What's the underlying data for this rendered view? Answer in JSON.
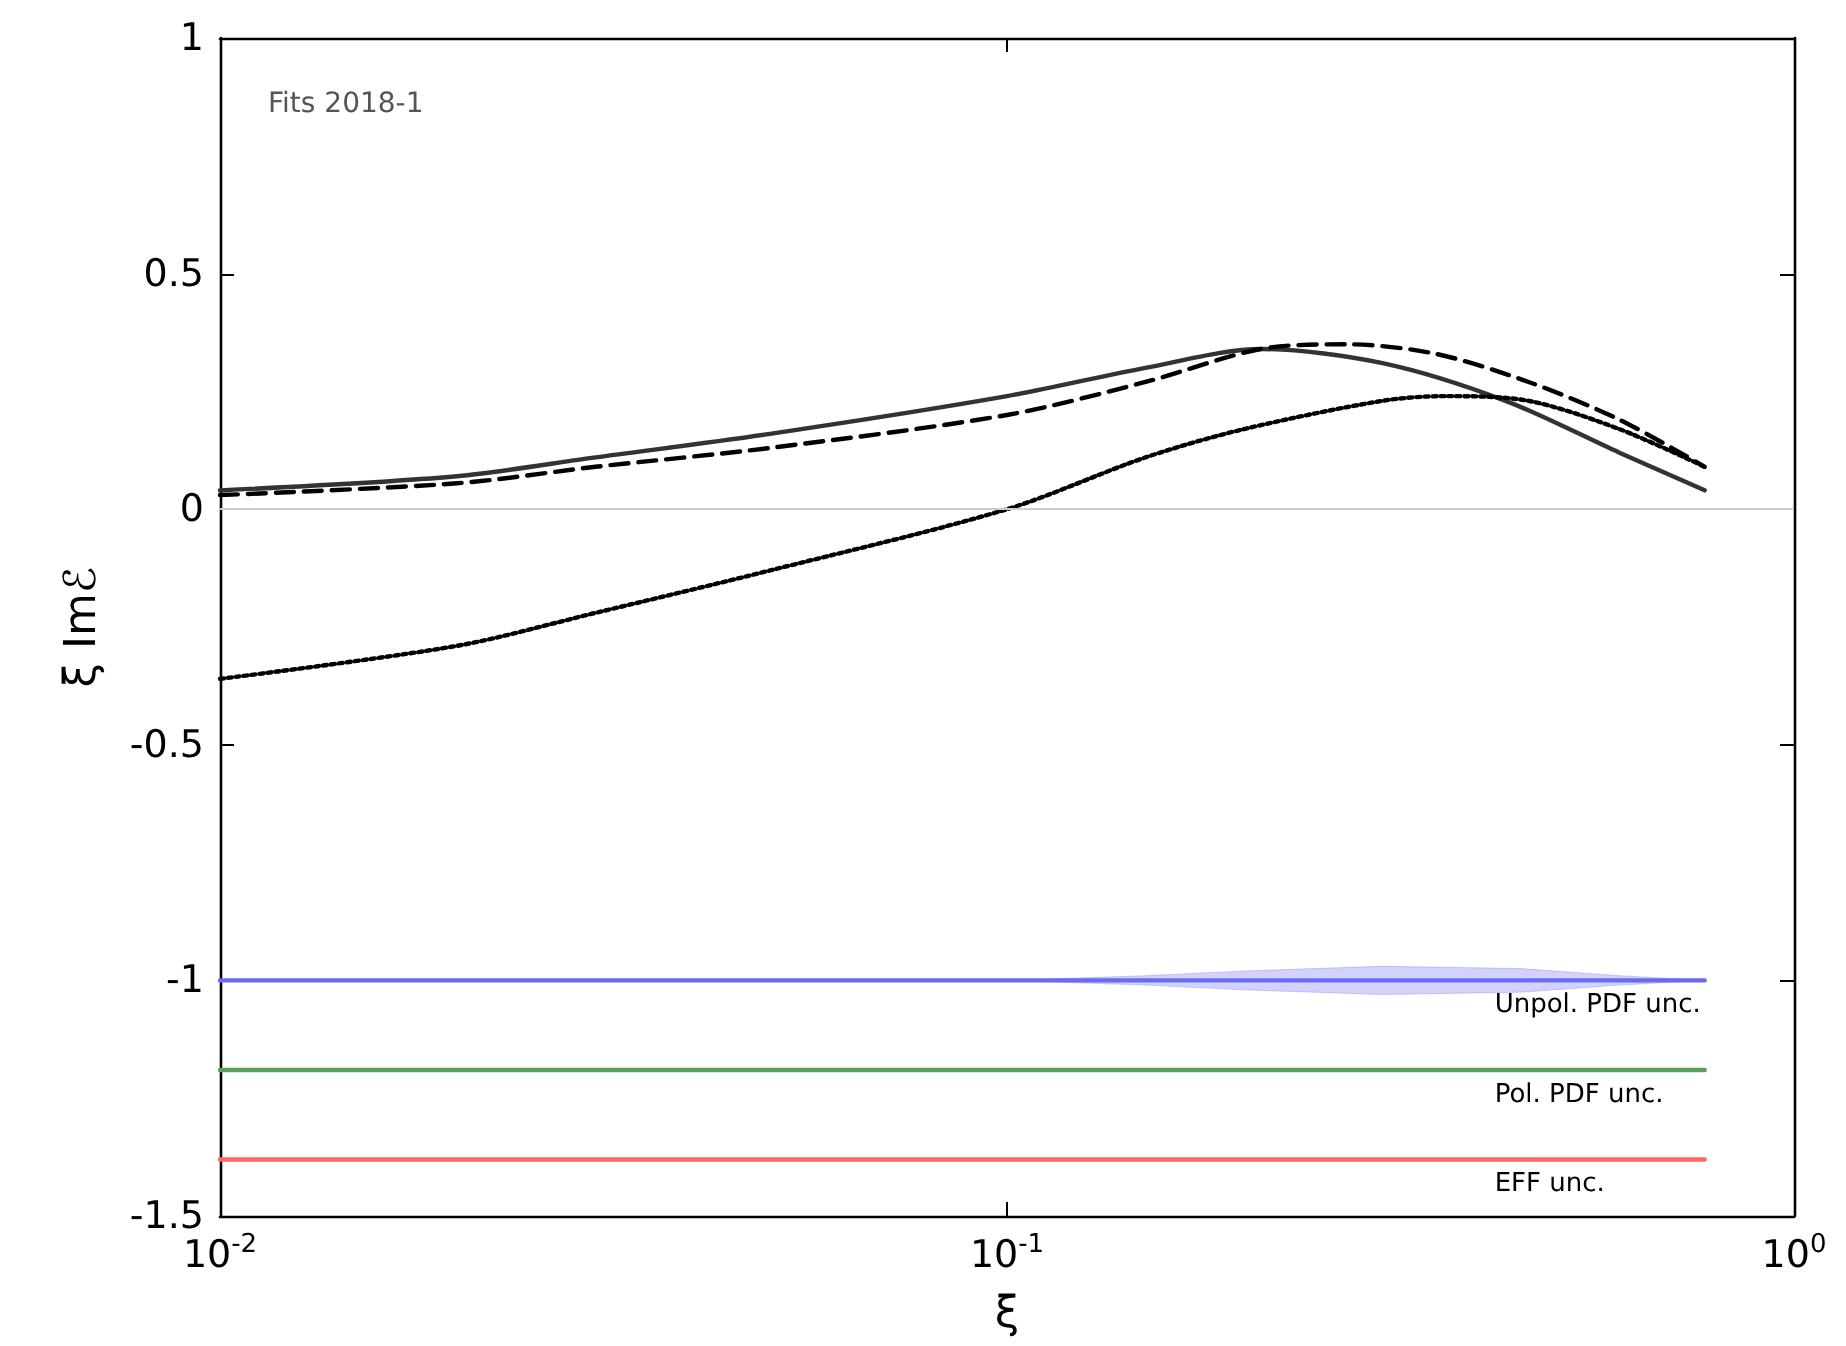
{
  "chart_data": {
    "type": "line",
    "xlabel": "ξ",
    "ylabel": "ξ Imℰ",
    "annotations": [
      "Fits 2018-1"
    ],
    "log": "x",
    "xlim": [
      0.01,
      1
    ],
    "xticks": [
      {
        "value": 0.01,
        "label": "10$^{-2}$"
      },
      {
        "value": 0.1,
        "label": "10$^{-1}$"
      },
      {
        "value": 1,
        "label": "10$^{0}$"
      }
    ],
    "ylim": [
      -1.5,
      1
    ],
    "yticks": [
      -1.5,
      -1,
      -0.5,
      0,
      0.5,
      1
    ],
    "grid": false,
    "legend": false,
    "ref_lines": [
      {
        "axis": "y",
        "value": 0,
        "color": "#cccccc"
      }
    ],
    "series": [
      {
        "color": "#333333",
        "line_style": "solid",
        "x": [
          0.01,
          0.02,
          0.03,
          0.05,
          0.1,
          0.15,
          0.21,
          0.3,
          0.43,
          0.6,
          0.77
        ],
        "values": [
          0.04,
          0.07,
          0.11,
          0.16,
          0.24,
          0.3,
          0.34,
          0.31,
          0.23,
          0.12,
          0.04
        ]
      },
      {
        "color": "#000000",
        "line_style": "dashed",
        "x": [
          0.01,
          0.02,
          0.03,
          0.05,
          0.1,
          0.15,
          0.21,
          0.27,
          0.35,
          0.46,
          0.6,
          0.77
        ],
        "values": [
          0.03,
          0.055,
          0.09,
          0.13,
          0.2,
          0.27,
          0.34,
          0.35,
          0.33,
          0.27,
          0.19,
          0.09
        ]
      },
      {
        "color": "#000000",
        "line_style": "dotted",
        "x": [
          0.01,
          0.02,
          0.03,
          0.05,
          0.1,
          0.15,
          0.2,
          0.3,
          0.36,
          0.46,
          0.6,
          0.77
        ],
        "values": [
          -0.36,
          -0.29,
          -0.22,
          -0.13,
          0.0,
          0.11,
          0.17,
          0.23,
          0.24,
          0.23,
          0.17,
          0.09
        ]
      },
      {
        "name": "Unpol. PDF unc.",
        "color": "#6b6bf0",
        "line_style": "solid",
        "x": [
          0.01,
          0.1,
          0.15,
          0.2,
          0.3,
          0.45,
          0.6,
          0.77
        ],
        "values": [
          -1,
          -1,
          -1,
          -1,
          -1,
          -1,
          -1,
          -1
        ],
        "lower": [
          -1,
          -1,
          -1.01,
          -1.02,
          -1.03,
          -1.025,
          -1.01,
          -1
        ],
        "upper": [
          -1,
          -1,
          -0.99,
          -0.98,
          -0.97,
          -0.975,
          -0.99,
          -1
        ]
      },
      {
        "name": "Pol. PDF unc.",
        "color": "#5a9e5a",
        "line_style": "solid",
        "x": [
          0.01,
          0.77
        ],
        "values": [
          -1.19,
          -1.19
        ]
      },
      {
        "name": "EFF unc.",
        "color": "#ff6666",
        "line_style": "solid",
        "x": [
          0.01,
          0.77
        ],
        "values": [
          -1.38,
          -1.38
        ]
      }
    ]
  }
}
